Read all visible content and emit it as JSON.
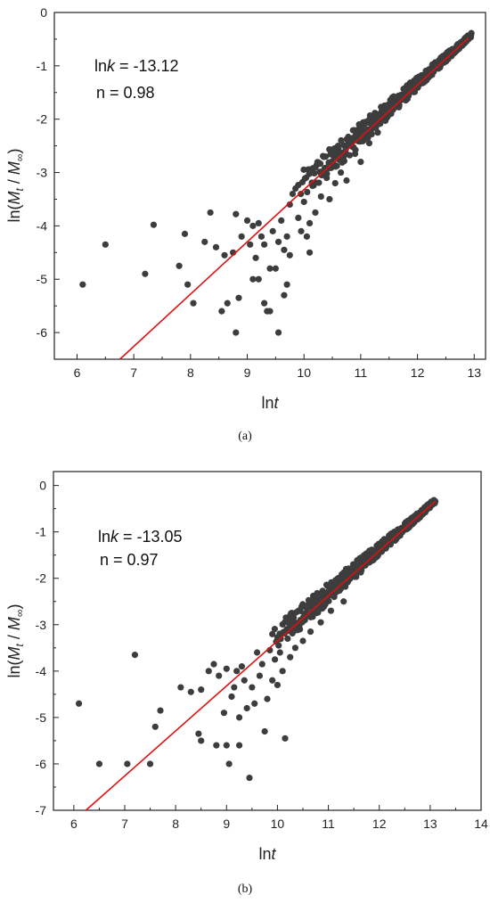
{
  "chart_data": [
    {
      "type": "scatter",
      "panel_label": "(a)",
      "xlabel_prefix": "ln",
      "xlabel_var": "t",
      "ylabel": "ln(Mt / M∞)",
      "xlim": [
        5.6,
        13.2
      ],
      "ylim": [
        -6.5,
        0
      ],
      "xticks": [
        6,
        7,
        8,
        9,
        10,
        11,
        12,
        13
      ],
      "yticks": [
        0,
        -1,
        -2,
        -3,
        -4,
        -5,
        -6
      ],
      "grid": false,
      "annotation": {
        "lnk_prefix": "ln",
        "lnk_var": "k",
        "lnk_value": " = -13.12",
        "n_text": "n = 0.98"
      },
      "fit_line": {
        "lnk": -13.12,
        "n": 0.98,
        "x_range": [
          6.4,
          12.9
        ]
      },
      "series": [
        {
          "points": [
            [
              6.1,
              -5.1
            ],
            [
              6.5,
              -4.35
            ],
            [
              7.2,
              -4.9
            ],
            [
              7.35,
              -3.98
            ],
            [
              7.8,
              -4.75
            ],
            [
              7.9,
              -4.15
            ],
            [
              7.95,
              -5.1
            ],
            [
              8.05,
              -5.45
            ],
            [
              8.25,
              -4.3
            ],
            [
              8.35,
              -3.75
            ],
            [
              8.45,
              -4.4
            ],
            [
              8.55,
              -5.6
            ],
            [
              8.6,
              -4.55
            ],
            [
              8.65,
              -5.45
            ],
            [
              8.75,
              -4.5
            ],
            [
              8.8,
              -3.78
            ],
            [
              8.8,
              -6.0
            ],
            [
              8.85,
              -5.35
            ],
            [
              8.9,
              -4.2
            ],
            [
              9.0,
              -3.9
            ],
            [
              9.05,
              -4.35
            ],
            [
              9.1,
              -5.0
            ],
            [
              9.1,
              -4.0
            ],
            [
              9.15,
              -4.6
            ],
            [
              9.2,
              -5.0
            ],
            [
              9.2,
              -3.95
            ],
            [
              9.25,
              -4.2
            ],
            [
              9.3,
              -5.45
            ],
            [
              9.3,
              -4.35
            ],
            [
              9.35,
              -5.6
            ],
            [
              9.4,
              -5.6
            ],
            [
              9.4,
              -4.8
            ],
            [
              9.45,
              -4.1
            ],
            [
              9.5,
              -4.8
            ],
            [
              9.55,
              -4.3
            ],
            [
              9.55,
              -6.0
            ],
            [
              9.6,
              -3.9
            ],
            [
              9.65,
              -5.3
            ],
            [
              9.65,
              -4.45
            ],
            [
              9.7,
              -5.1
            ],
            [
              9.7,
              -4.2
            ],
            [
              9.75,
              -3.6
            ],
            [
              9.75,
              -4.55
            ],
            [
              9.8,
              -3.4
            ],
            [
              9.85,
              -3.3
            ],
            [
              9.9,
              -3.85
            ],
            [
              9.95,
              -4.1
            ],
            [
              10.0,
              -3.55
            ],
            [
              10.05,
              -4.2
            ],
            [
              10.1,
              -4.5
            ],
            [
              10.1,
              -3.95
            ],
            [
              10.15,
              -3.25
            ],
            [
              10.2,
              -3.75
            ],
            [
              10.2,
              -2.9
            ],
            [
              10.3,
              -3.45
            ],
            [
              10.35,
              -2.7
            ],
            [
              10.4,
              -3.1
            ],
            [
              10.45,
              -3.5
            ],
            [
              10.5,
              -2.85
            ],
            [
              10.55,
              -3.2
            ],
            [
              10.6,
              -2.5
            ],
            [
              10.65,
              -3.0
            ],
            [
              10.7,
              -2.7
            ],
            [
              10.75,
              -3.15
            ],
            [
              10.8,
              -2.45
            ],
            [
              10.9,
              -2.65
            ],
            [
              10.95,
              -2.3
            ],
            [
              11.0,
              -2.8
            ],
            [
              11.05,
              -2.2
            ],
            [
              11.15,
              -2.45
            ],
            [
              11.2,
              -2.1
            ],
            [
              11.3,
              -2.25
            ]
          ]
        }
      ],
      "dense_band": {
        "x_range": [
          9.9,
          12.95
        ],
        "lnk": -13.12,
        "n": 0.98,
        "spread_start": 0.6,
        "spread_end": 0.08
      }
    },
    {
      "type": "scatter",
      "panel_label": "(b)",
      "xlabel_prefix": "ln",
      "xlabel_var": "t",
      "ylabel": "ln(Mt / M∞)",
      "xlim": [
        5.6,
        14
      ],
      "ylim": [
        -7,
        0.3
      ],
      "xticks": [
        6,
        7,
        8,
        9,
        10,
        11,
        12,
        13,
        14
      ],
      "yticks": [
        0,
        -1,
        -2,
        -3,
        -4,
        -5,
        -6,
        -7
      ],
      "grid": false,
      "annotation": {
        "lnk_prefix": "ln",
        "lnk_var": "k",
        "lnk_value": " = -13.05",
        "n_text": "n = 0.97"
      },
      "fit_line": {
        "lnk": -13.05,
        "n": 0.97,
        "x_range": [
          6.2,
          13.1
        ]
      },
      "series": [
        {
          "points": [
            [
              6.1,
              -4.7
            ],
            [
              6.5,
              -6.0
            ],
            [
              7.05,
              -6.0
            ],
            [
              7.2,
              -3.65
            ],
            [
              7.5,
              -6.0
            ],
            [
              7.6,
              -5.2
            ],
            [
              7.7,
              -4.85
            ],
            [
              8.1,
              -4.35
            ],
            [
              8.3,
              -4.45
            ],
            [
              8.45,
              -5.35
            ],
            [
              8.5,
              -4.4
            ],
            [
              8.5,
              -5.5
            ],
            [
              8.65,
              -4.0
            ],
            [
              8.75,
              -3.85
            ],
            [
              8.8,
              -5.6
            ],
            [
              8.85,
              -4.1
            ],
            [
              8.95,
              -4.9
            ],
            [
              9.0,
              -5.6
            ],
            [
              9.0,
              -3.95
            ],
            [
              9.05,
              -6.0
            ],
            [
              9.1,
              -4.55
            ],
            [
              9.15,
              -4.35
            ],
            [
              9.2,
              -4.0
            ],
            [
              9.25,
              -5.0
            ],
            [
              9.25,
              -5.6
            ],
            [
              9.3,
              -3.9
            ],
            [
              9.35,
              -4.2
            ],
            [
              9.4,
              -4.8
            ],
            [
              9.45,
              -6.3
            ],
            [
              9.5,
              -4.35
            ],
            [
              9.55,
              -4.7
            ],
            [
              9.6,
              -3.6
            ],
            [
              9.65,
              -4.1
            ],
            [
              9.7,
              -3.85
            ],
            [
              9.75,
              -5.3
            ],
            [
              9.8,
              -4.6
            ],
            [
              9.85,
              -3.55
            ],
            [
              9.9,
              -4.2
            ],
            [
              9.95,
              -3.75
            ],
            [
              10.0,
              -4.3
            ],
            [
              10.05,
              -3.6
            ],
            [
              10.1,
              -4.0
            ],
            [
              10.15,
              -5.45
            ],
            [
              10.2,
              -3.3
            ],
            [
              10.25,
              -3.7
            ],
            [
              10.3,
              -3.1
            ],
            [
              10.35,
              -3.5
            ],
            [
              10.45,
              -2.9
            ],
            [
              10.5,
              -3.35
            ],
            [
              10.6,
              -2.8
            ],
            [
              10.65,
              -3.15
            ],
            [
              10.75,
              -2.6
            ],
            [
              10.85,
              -2.95
            ],
            [
              10.95,
              -2.45
            ],
            [
              11.05,
              -2.7
            ],
            [
              11.15,
              -2.3
            ],
            [
              11.3,
              -2.5
            ]
          ]
        }
      ],
      "dense_band": {
        "x_range": [
          9.9,
          13.1
        ],
        "lnk": -13.05,
        "n": 0.97,
        "spread_start": 0.6,
        "spread_end": 0.1
      }
    }
  ]
}
